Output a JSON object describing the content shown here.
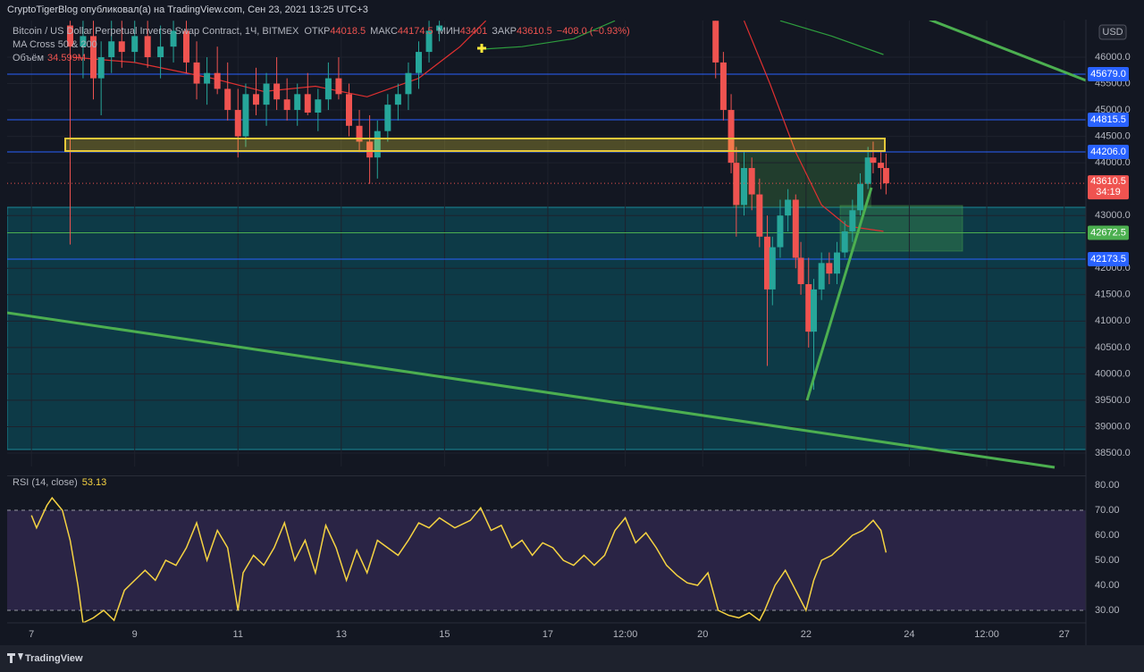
{
  "header": {
    "publisher": "CryptoTigerBlog опубликовал(а) на TradingView.com, Сен 23, 2021 13:25 UTC+3",
    "symbol": "Bitcoin / US Dollar Perpetual Inverse Swap Contract, 1Ч, BITMEX",
    "open_label": "ОТКР",
    "open": 44018.5,
    "high_label": "МАКС",
    "high": 44174.5,
    "low_label": "МИН",
    "low": 43401.0,
    "close_label": "ЗАКР",
    "close": 43610.5,
    "change": "−408.0 (−0.93%)",
    "indicator": "MA Cross 50 & 200",
    "volume_label": "Объём",
    "volume": "34.599M",
    "currency": "USD",
    "brand": "TradingView"
  },
  "chart_data": [
    {
      "type": "candlestick",
      "x": [
        7.75,
        8.0,
        8.2,
        8.35,
        8.55,
        8.75,
        9.0,
        9.25,
        9.5,
        9.75,
        10.0,
        10.2,
        10.4,
        10.6,
        10.8,
        11.0,
        11.15,
        11.35,
        11.55,
        11.75,
        11.95,
        12.15,
        12.35,
        12.55,
        12.75,
        12.95,
        13.15,
        13.35,
        13.55,
        13.7,
        13.9,
        14.1,
        14.3,
        14.5,
        14.7,
        14.9,
        20.25,
        20.4,
        20.55,
        20.65,
        20.8,
        20.95,
        21.1,
        21.25,
        21.35,
        21.5,
        21.65,
        21.8,
        21.9,
        22.05,
        22.15,
        22.3,
        22.45,
        22.6,
        22.75,
        22.9,
        23.05,
        23.2,
        23.3,
        23.45,
        23.55
      ],
      "open": [
        46600,
        46200,
        46400,
        45600,
        46000,
        46300,
        46100,
        46400,
        46000,
        46200,
        46500,
        45900,
        45500,
        45700,
        45400,
        45000,
        44500,
        45300,
        45100,
        45500,
        45200,
        45000,
        45300,
        44950,
        45200,
        45600,
        45300,
        44700,
        44400,
        44100,
        44600,
        45100,
        45300,
        45700,
        46100,
        46500,
        46690,
        45900,
        45000,
        44000,
        43200,
        43900,
        43400,
        42600,
        41600,
        42400,
        43000,
        43300,
        42200,
        41700,
        40800,
        41600,
        42100,
        41900,
        42300,
        42700,
        43100,
        43600,
        44100,
        44000,
        43900
      ],
      "high": [
        46690,
        46690,
        46690,
        46300,
        46690,
        46690,
        46690,
        46690,
        46600,
        46690,
        46690,
        46300,
        46000,
        46200,
        45900,
        45400,
        45500,
        45800,
        45700,
        46000,
        45600,
        45500,
        45700,
        45400,
        45900,
        46000,
        45500,
        45000,
        44900,
        44800,
        45300,
        45500,
        45900,
        46300,
        46690,
        46690,
        46690,
        46100,
        45300,
        44300,
        44200,
        44100,
        43700,
        43000,
        42600,
        43300,
        43500,
        43400,
        42500,
        42200,
        41800,
        42300,
        42300,
        42500,
        42900,
        43300,
        43800,
        44300,
        44400,
        44200,
        44174.5
      ],
      "low": [
        42450,
        45600,
        45200,
        44900,
        45700,
        45800,
        45900,
        45800,
        45600,
        45900,
        45700,
        45200,
        45100,
        45300,
        44800,
        44100,
        44300,
        44900,
        44700,
        45000,
        44800,
        44700,
        44900,
        44600,
        45000,
        45200,
        44500,
        44200,
        43600,
        43700,
        44400,
        44800,
        45000,
        45400,
        45900,
        46300,
        45600,
        44800,
        43800,
        42600,
        43000,
        43100,
        42400,
        40150,
        41300,
        42200,
        42700,
        42000,
        41500,
        40500,
        39700,
        41400,
        41700,
        41700,
        42200,
        42500,
        43000,
        43500,
        43800,
        43500,
        43401
      ],
      "close": [
        46200,
        46400,
        45600,
        46000,
        46300,
        46100,
        46400,
        46000,
        46200,
        46500,
        45900,
        45500,
        45700,
        45400,
        45000,
        44500,
        45300,
        45100,
        45500,
        45200,
        45000,
        45300,
        44950,
        45200,
        45600,
        45300,
        44700,
        44400,
        44100,
        44600,
        45100,
        45300,
        45700,
        46100,
        46500,
        46600,
        45900,
        45000,
        44000,
        43200,
        43900,
        43400,
        42600,
        41600,
        42400,
        43000,
        43300,
        42200,
        41700,
        40800,
        41600,
        42100,
        41900,
        42300,
        42700,
        43100,
        43600,
        44100,
        44000,
        43900,
        43610.5
      ],
      "up_color": "#26a69a",
      "down_color": "#ef5350",
      "xlim": [
        6.53,
        27.42
      ],
      "xticks": [
        {
          "value": 7,
          "label": "7"
        },
        {
          "value": 9,
          "label": "9"
        },
        {
          "value": 11,
          "label": "11"
        },
        {
          "value": 13,
          "label": "13"
        },
        {
          "value": 15,
          "label": "15"
        },
        {
          "value": 17,
          "label": "17"
        },
        {
          "value": 18.5,
          "label": "12:00"
        },
        {
          "value": 20,
          "label": "20"
        },
        {
          "value": 22,
          "label": "22"
        },
        {
          "value": 24,
          "label": "24"
        },
        {
          "value": 25.5,
          "label": "12:00"
        },
        {
          "value": 27,
          "label": "27"
        }
      ],
      "ylim": [
        38246,
        46694
      ],
      "yticks": [
        {
          "value": 46000,
          "label": "46000.0"
        },
        {
          "value": 45500,
          "label": "45500.0"
        },
        {
          "value": 45000,
          "label": "45000.0"
        },
        {
          "value": 44500,
          "label": "44500.0"
        },
        {
          "value": 44000,
          "label": "44000.0"
        },
        {
          "value": 43000,
          "label": "43000.0"
        },
        {
          "value": 42000,
          "label": "42000.0"
        },
        {
          "value": 41500,
          "label": "41500.0"
        },
        {
          "value": 41000,
          "label": "41000.0"
        },
        {
          "value": 40500,
          "label": "40500.0"
        },
        {
          "value": 40000,
          "label": "40000.0"
        },
        {
          "value": 39500,
          "label": "39500.0"
        },
        {
          "value": 39000,
          "label": "39000.0"
        },
        {
          "value": 38500,
          "label": "38500.0"
        }
      ],
      "price_lines": [
        {
          "value": 45679,
          "label": "45679.0",
          "color": "#2962ff"
        },
        {
          "value": 44815.5,
          "label": "44815.5",
          "color": "#2962ff"
        },
        {
          "value": 44206,
          "label": "44206.0",
          "color": "#2962ff"
        },
        {
          "value": 42672.5,
          "label": "42672.5",
          "color": "#4caf50"
        },
        {
          "value": 42173.5,
          "label": "42173.5",
          "color": "#2962ff"
        }
      ],
      "current_price": 43610.5,
      "countdown": "34:19",
      "moving_averages": [
        {
          "color": "#e03030",
          "x": [
            7.8,
            9,
            10.5,
            11.5,
            12.5,
            13.5,
            14.5,
            15.3,
            15.8,
            null,
            20.8,
            21.3,
            21.8,
            22.3,
            22.8,
            23.5
          ],
          "values": [
            46000,
            45900,
            45600,
            45350,
            45450,
            45250,
            45600,
            46200,
            46690,
            null,
            46690,
            45500,
            44200,
            43200,
            42800,
            42700
          ]
        },
        {
          "color": "#2e9e3e",
          "x": [
            15.7,
            16.5,
            17.5,
            18.3,
            null,
            21.5,
            22.5,
            23.5
          ],
          "values": [
            46150,
            46200,
            46350,
            46690,
            null,
            46690,
            46400,
            46050
          ]
        }
      ]
    },
    {
      "type": "line",
      "title": "RSI (14, close)",
      "last": 53.13,
      "color": "#f5d342",
      "x": [
        7.0,
        7.1,
        7.3,
        7.4,
        7.6,
        7.75,
        7.9,
        8.0,
        8.2,
        8.4,
        8.6,
        8.8,
        9.0,
        9.2,
        9.4,
        9.6,
        9.8,
        10.0,
        10.2,
        10.4,
        10.6,
        10.8,
        11.0,
        11.1,
        11.3,
        11.5,
        11.7,
        11.9,
        12.1,
        12.3,
        12.5,
        12.7,
        12.9,
        13.1,
        13.3,
        13.5,
        13.7,
        13.9,
        14.1,
        14.3,
        14.5,
        14.7,
        14.9,
        15.2,
        15.5,
        15.7,
        15.9,
        16.1,
        16.3,
        16.5,
        16.7,
        16.9,
        17.1,
        17.3,
        17.5,
        17.7,
        17.9,
        18.1,
        18.3,
        18.5,
        18.7,
        18.9,
        19.1,
        19.3,
        19.5,
        19.7,
        19.9,
        20.1,
        20.3,
        20.5,
        20.7,
        20.9,
        21.1,
        21.2,
        21.4,
        21.6,
        21.8,
        22.0,
        22.15,
        22.3,
        22.5,
        22.7,
        22.9,
        23.1,
        23.3,
        23.45,
        23.55
      ],
      "values": [
        68,
        63,
        72,
        75,
        70,
        58,
        40,
        25,
        27,
        30,
        26,
        38,
        42,
        46,
        42,
        50,
        48,
        55,
        65,
        50,
        62,
        55,
        30,
        45,
        52,
        48,
        55,
        65,
        50,
        58,
        45,
        64,
        55,
        42,
        54,
        45,
        58,
        55,
        52,
        58,
        65,
        63,
        67,
        63,
        66,
        71,
        62,
        64,
        55,
        58,
        52,
        57,
        55,
        50,
        48,
        52,
        48,
        52,
        62,
        67,
        57,
        61,
        55,
        48,
        44,
        41,
        40,
        45,
        30,
        28,
        27,
        29,
        26,
        30,
        40,
        46,
        38,
        30,
        42,
        50,
        52,
        56,
        60,
        62,
        66,
        62,
        53.13
      ],
      "ylim": [
        25,
        83.6
      ],
      "yticks": [
        {
          "value": 80,
          "label": "80.00"
        },
        {
          "value": 70,
          "label": "70.00"
        },
        {
          "value": 60,
          "label": "60.00"
        },
        {
          "value": 50,
          "label": "50.00"
        },
        {
          "value": 40,
          "label": "40.00"
        },
        {
          "value": 30,
          "label": "30.00"
        }
      ],
      "bands": [
        70,
        30
      ]
    }
  ]
}
